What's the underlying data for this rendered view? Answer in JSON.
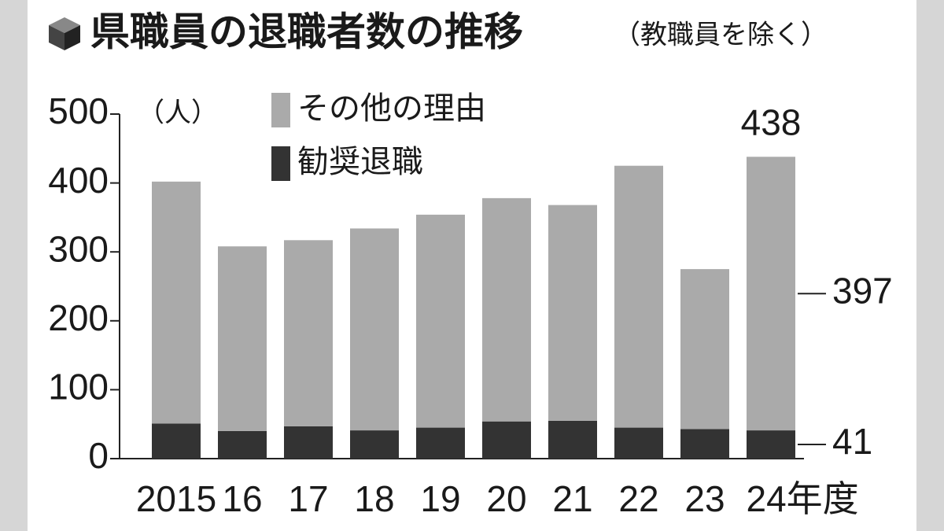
{
  "chart_data": {
    "type": "stacked_bar",
    "title": "県職員の退職者数の推移",
    "subtitle": "（教職員を除く）",
    "y_label": "（人）",
    "categories": [
      "2015",
      "16",
      "17",
      "18",
      "19",
      "20",
      "21",
      "22",
      "23",
      "24年度"
    ],
    "series": [
      {
        "name": "勧奨退職",
        "color": "#333333",
        "values": [
          51,
          40,
          47,
          41,
          45,
          54,
          55,
          45,
          43,
          41
        ],
        "value_labels": [
          null,
          null,
          null,
          null,
          null,
          null,
          null,
          null,
          null,
          "41"
        ]
      },
      {
        "name": "その他の理由",
        "color": "#aaaaaa",
        "values": [
          351,
          268,
          270,
          293,
          309,
          324,
          313,
          380,
          232,
          397
        ],
        "value_labels": [
          null,
          null,
          null,
          null,
          null,
          null,
          null,
          null,
          null,
          "397"
        ]
      }
    ],
    "total_label": "438",
    "ylim": [
      0,
      500
    ],
    "yticks": [
      0,
      100,
      200,
      300,
      400,
      500
    ]
  }
}
